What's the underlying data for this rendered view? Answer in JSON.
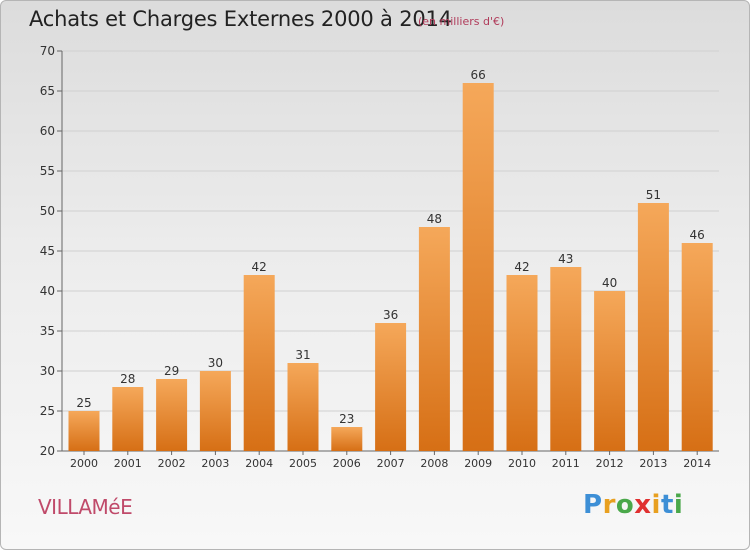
{
  "title": "Achats et Charges Externes 2000 à 2014",
  "subtitle": "(en milliers d'€)",
  "commune": "VILLAMéE",
  "logo": {
    "letters": [
      "P",
      "r",
      "o",
      "x",
      "i",
      "t",
      "i"
    ],
    "colors": [
      "#3d8fd6",
      "#e8a020",
      "#4aa84a",
      "#e03030",
      "#e8a020",
      "#3d8fd6",
      "#4aa84a"
    ]
  },
  "colors": {
    "bar_top": "#f5a85a",
    "bar_bottom": "#d66f15",
    "grid": "#d0d0d0"
  },
  "chart_data": {
    "type": "bar",
    "title": "Achats et Charges Externes 2000 à 2014",
    "subtitle": "(en milliers d'€)",
    "categories": [
      "2000",
      "2001",
      "2002",
      "2003",
      "2004",
      "2005",
      "2006",
      "2007",
      "2008",
      "2009",
      "2010",
      "2011",
      "2012",
      "2013",
      "2014"
    ],
    "values": [
      25,
      28,
      29,
      30,
      42,
      31,
      23,
      36,
      48,
      66,
      42,
      43,
      40,
      51,
      46
    ],
    "ylim": [
      20,
      70
    ],
    "yticks": [
      20,
      25,
      30,
      35,
      40,
      45,
      50,
      55,
      60,
      65,
      70
    ],
    "grid": true,
    "data_labels": true,
    "xlabel": "",
    "ylabel": ""
  }
}
